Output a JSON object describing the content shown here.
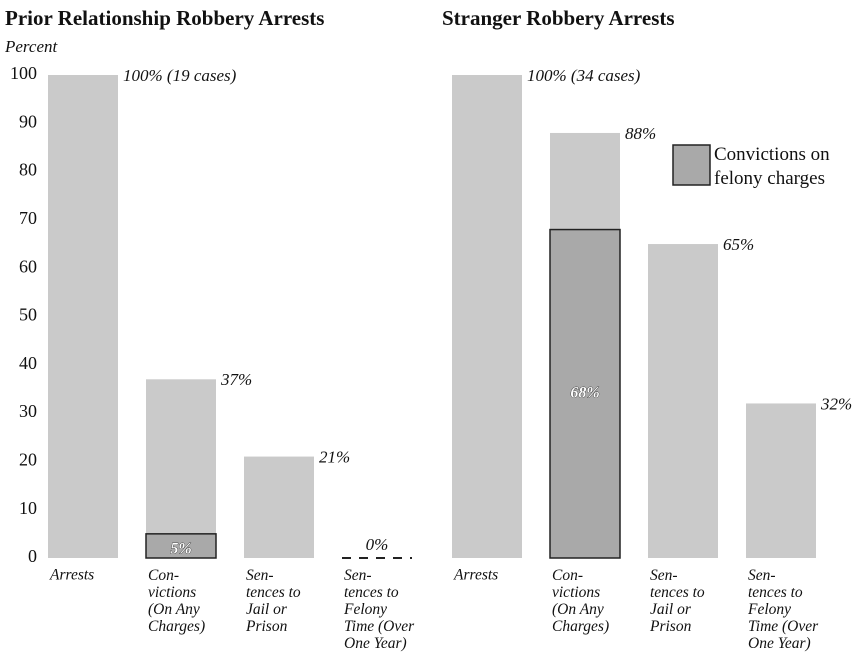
{
  "chart_data": [
    {
      "type": "bar",
      "title": "Prior Relationship Robbery Arrests",
      "ylabel": "Percent",
      "categories": [
        "Arrests",
        "Con-\nvictions\n(On Any\nCharges)",
        "Sen-\ntences to\nJail or\nPrison",
        "Sen-\ntences to\nFelony\nTime (Over\nOne Year)"
      ],
      "series": [
        {
          "color": "#cacaca",
          "values": [
            100,
            37,
            21,
            0
          ],
          "value_labels": [
            "100% (19 cases)",
            "37%",
            "21%",
            "0%"
          ]
        },
        {
          "color": "#a9a9a9",
          "values": [
            null,
            5,
            null,
            null
          ],
          "value_labels": [
            null,
            "5%",
            null,
            null
          ]
        }
      ],
      "ylim": [
        0,
        100
      ],
      "yticks": [
        0,
        10,
        20,
        30,
        40,
        50,
        60,
        70,
        80,
        90,
        100
      ]
    },
    {
      "type": "bar",
      "title": "Stranger Robbery Arrests",
      "categories": [
        "Arrests",
        "Con-\nvictions\n(On Any\nCharges)",
        "Sen-\ntences to\nJail or\nPrison",
        "Sen-\ntences to\nFelony\nTime (Over\nOne Year)"
      ],
      "series": [
        {
          "color": "#cacaca",
          "values": [
            100,
            88,
            65,
            32
          ],
          "value_labels": [
            "100% (34 cases)",
            "88%",
            "65%",
            "32%"
          ]
        },
        {
          "name": "Convictions on\nfelony charges",
          "color": "#a9a9a9",
          "values": [
            null,
            68,
            null,
            null
          ],
          "value_labels": [
            null,
            "68%",
            null,
            null
          ]
        }
      ],
      "ylim": [
        0,
        100
      ],
      "legend": "upper right"
    }
  ]
}
